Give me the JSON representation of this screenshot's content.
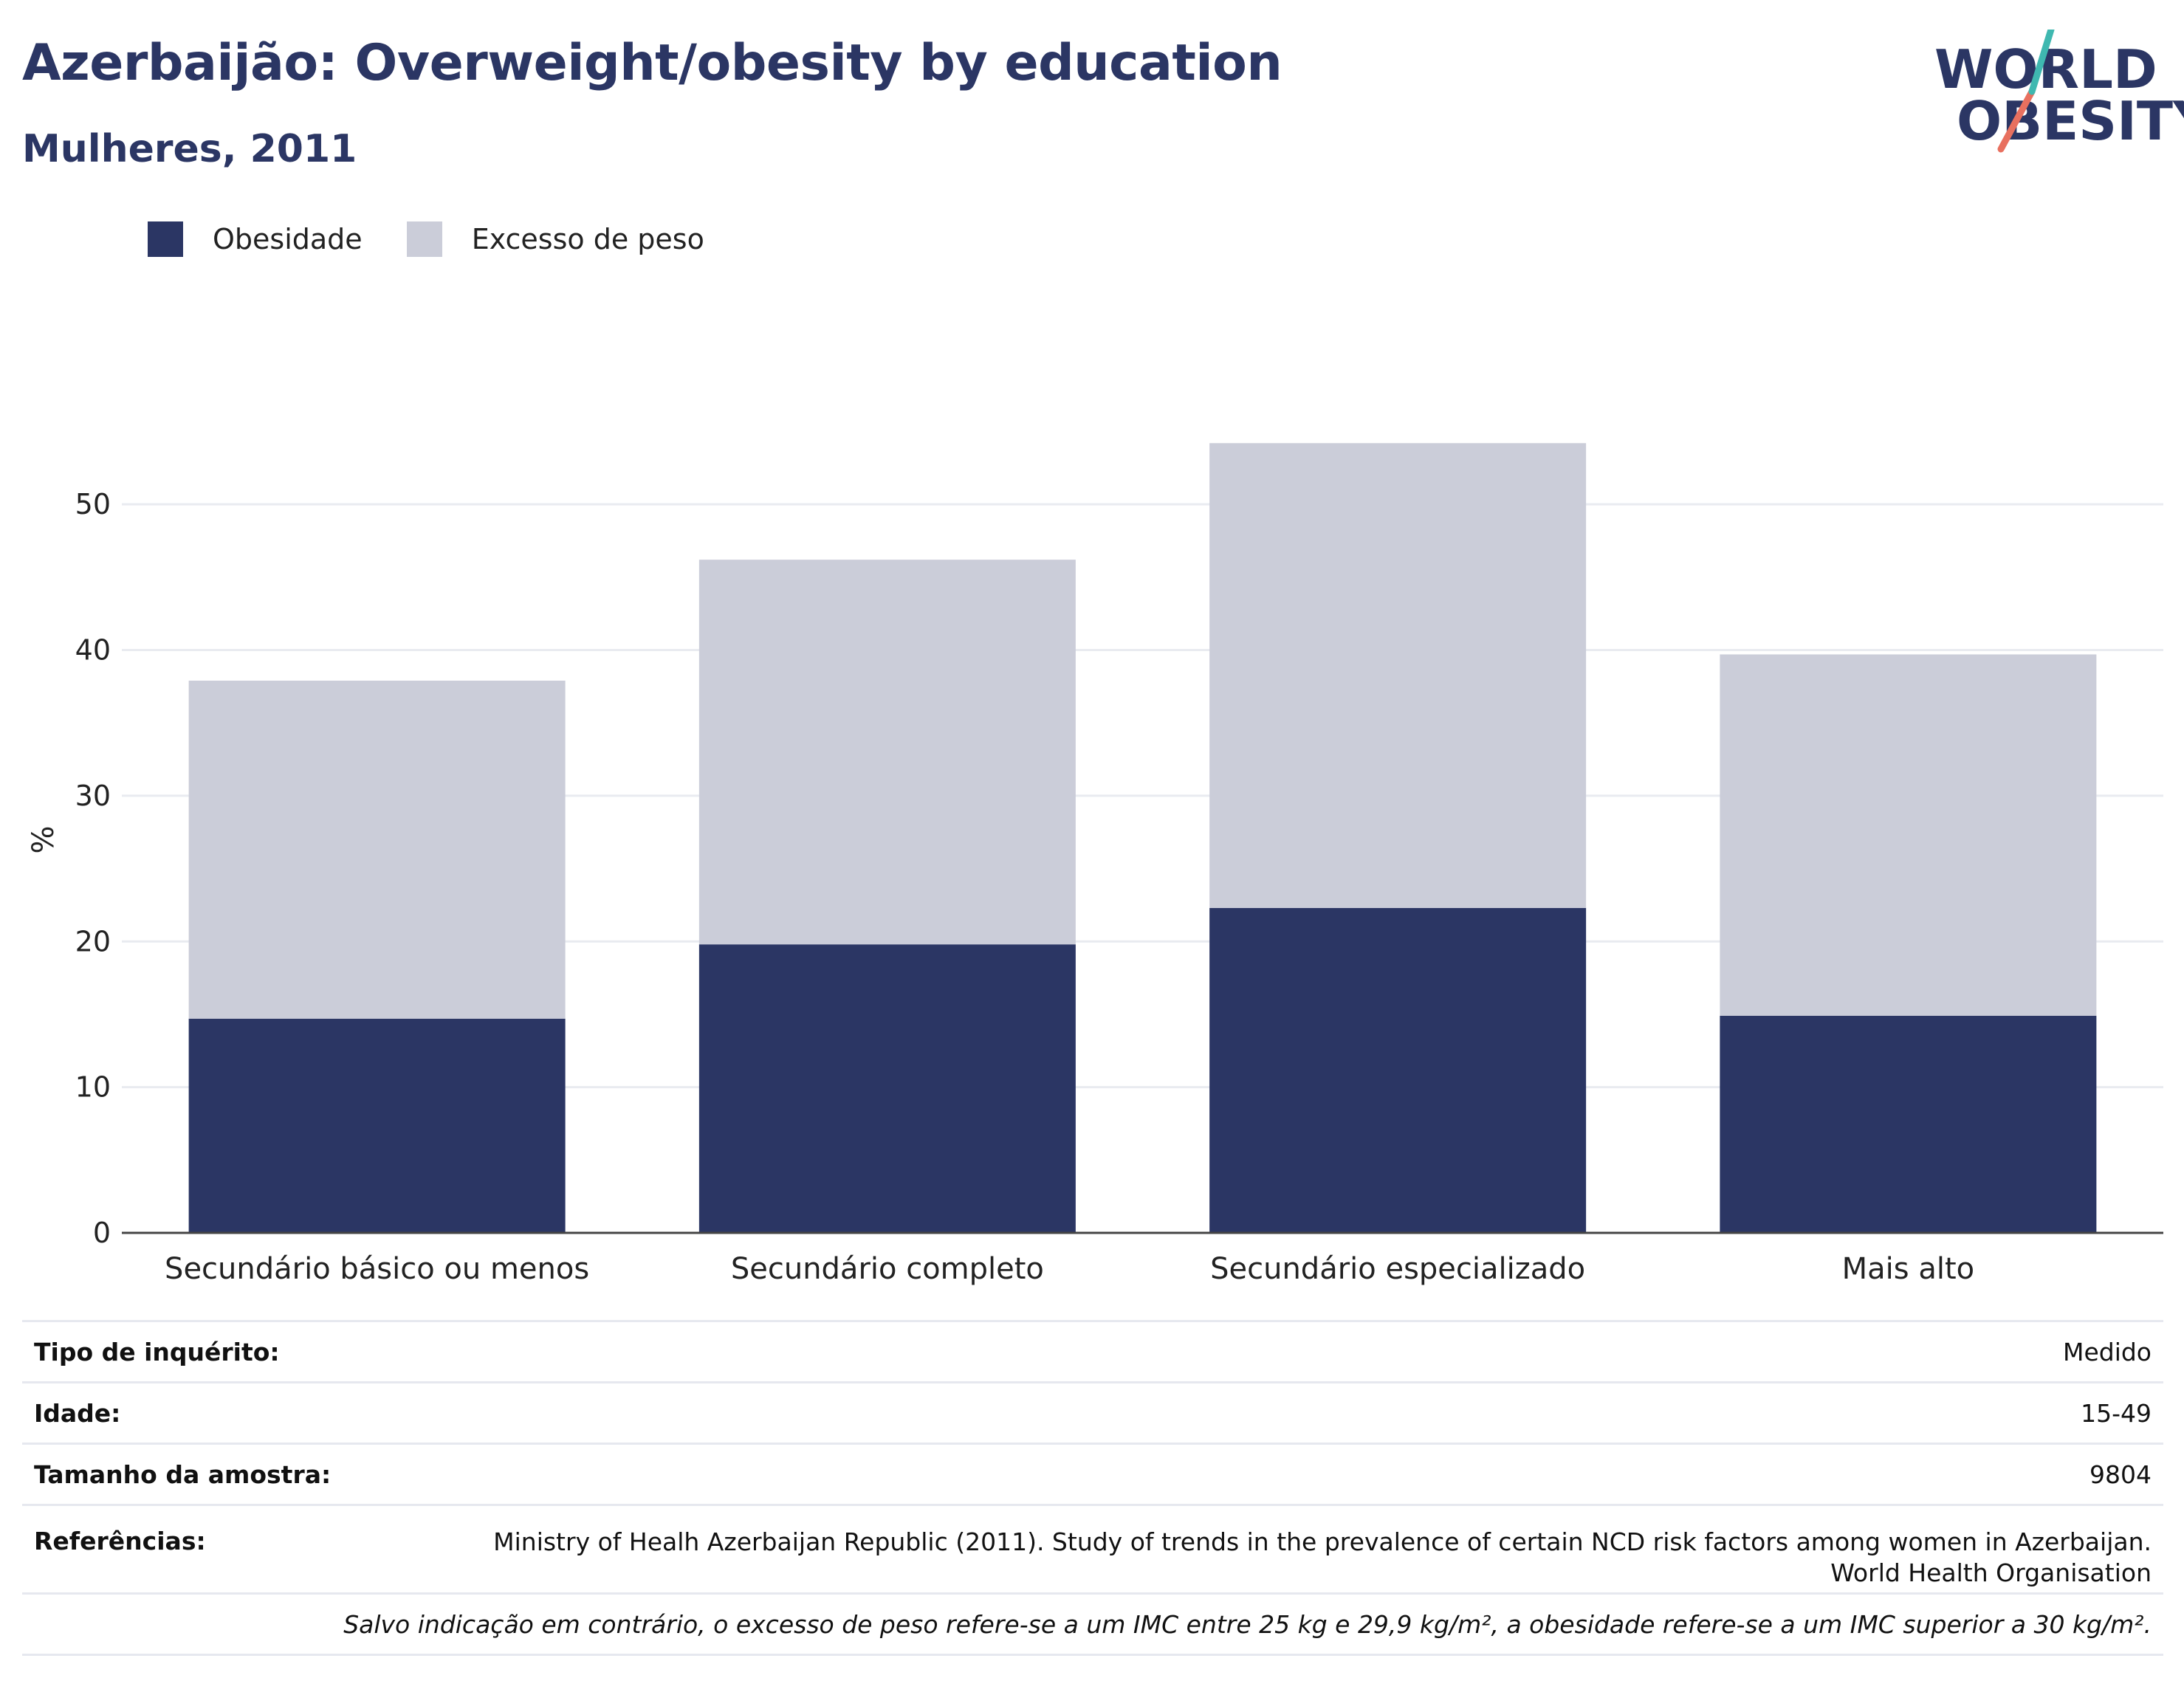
{
  "header": {
    "title": "Azerbaijão: Overweight/obesity by education",
    "subtitle": "Mulheres, 2011"
  },
  "logo": {
    "line1": "WORLD",
    "line2": "OBESITY",
    "accent_colors": [
      "#3fb8b0",
      "#e8705f"
    ]
  },
  "legend": {
    "items": [
      {
        "label": "Obesidade",
        "color": "#2b3664"
      },
      {
        "label": "Excesso de peso",
        "color": "#cbcdd9"
      }
    ]
  },
  "chart_data": {
    "type": "bar",
    "stacked": true,
    "categories": [
      "Secundário básico ou menos",
      "Secundário completo",
      "Secundário especializado",
      "Mais alto"
    ],
    "series": [
      {
        "name": "Obesidade",
        "color": "#2b3664",
        "values": [
          14.7,
          19.8,
          22.3,
          14.9
        ]
      },
      {
        "name": "Excesso de peso",
        "color": "#cbcdd9",
        "values": [
          23.2,
          26.4,
          31.9,
          24.8
        ]
      }
    ],
    "ylabel": "%",
    "xlabel": "",
    "ylim": [
      0,
      57
    ],
    "yticks": [
      0,
      10,
      20,
      30,
      40,
      50
    ],
    "grid": true,
    "legend_position": "top-left"
  },
  "info": {
    "rows": [
      {
        "key": "Tipo de inquérito:",
        "value": "Medido"
      },
      {
        "key": "Idade:",
        "value": "15-49"
      },
      {
        "key": "Tamanho da amostra:",
        "value": "9804"
      },
      {
        "key": "Referências:",
        "value": "Ministry of Healh Azerbaijan Republic (2011). Study of trends in the prevalence of certain NCD risk factors among women in Azerbaijan.",
        "value2": "World Health Organisation"
      }
    ],
    "note": "Salvo indicação em contrário, o excesso de peso refere-se a um IMC entre 25 kg e 29,9 kg/m², a obesidade refere-se a um IMC superior a 30 kg/m²."
  }
}
